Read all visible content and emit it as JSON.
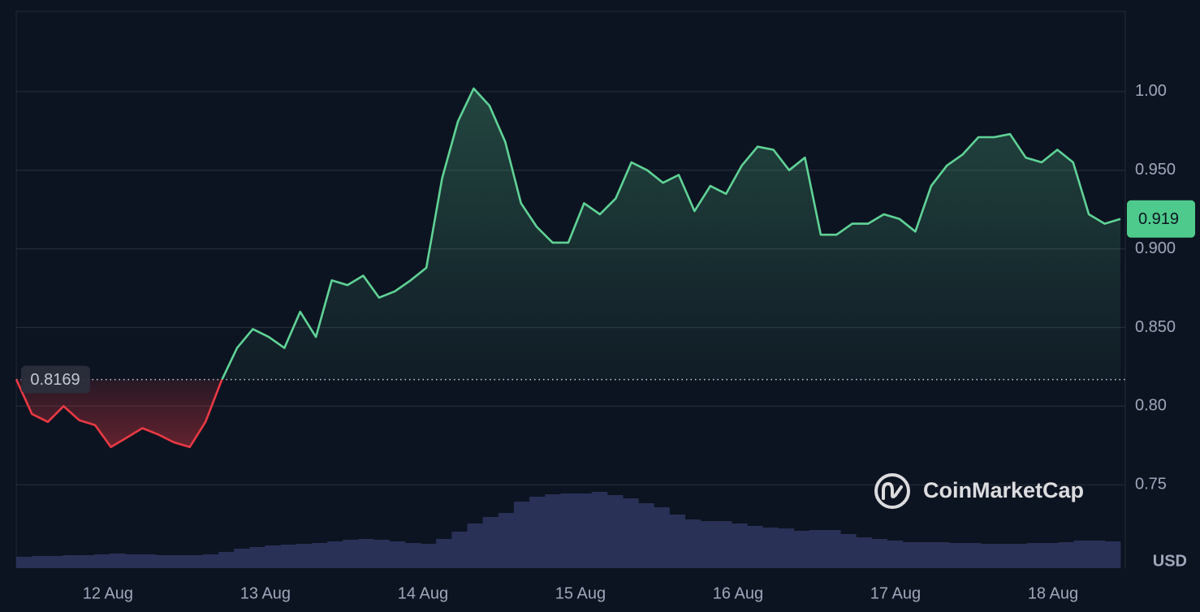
{
  "chart_data": {
    "type": "line",
    "xlim": [
      11.418,
      18.428
    ],
    "xticks": [
      {
        "value": 12,
        "label": "12 Aug"
      },
      {
        "value": 13,
        "label": "13 Aug"
      },
      {
        "value": 14,
        "label": "14 Aug"
      },
      {
        "value": 15,
        "label": "15 Aug"
      },
      {
        "value": 16,
        "label": "16 Aug"
      },
      {
        "value": 17,
        "label": "17 Aug"
      },
      {
        "value": 18,
        "label": "18 Aug"
      }
    ],
    "ylim": [
      0.697,
      1.051
    ],
    "yticks": [
      {
        "value": 0.75,
        "label": "0.75"
      },
      {
        "value": 0.8,
        "label": "0.80"
      },
      {
        "value": 0.85,
        "label": "0.850"
      },
      {
        "value": 0.9,
        "label": "0.900"
      },
      {
        "value": 0.95,
        "label": "0.950"
      },
      {
        "value": 1,
        "label": "1.00"
      }
    ],
    "grid": true,
    "values": [
      0.817,
      0.795,
      0.79,
      0.8,
      0.791,
      0.788,
      0.774,
      0.78,
      0.786,
      0.782,
      0.777,
      0.774,
      0.79,
      0.816,
      0.837,
      0.849,
      0.844,
      0.837,
      0.86,
      0.844,
      0.88,
      0.877,
      0.883,
      0.869,
      0.873,
      0.88,
      0.888,
      0.945,
      0.981,
      1.002,
      0.991,
      0.968,
      0.929,
      0.914,
      0.904,
      0.904,
      0.929,
      0.922,
      0.932,
      0.955,
      0.95,
      0.942,
      0.947,
      0.924,
      0.94,
      0.935,
      0.953,
      0.965,
      0.963,
      0.95,
      0.958,
      0.909,
      0.909,
      0.916,
      0.916,
      0.922,
      0.919,
      0.911,
      0.94,
      0.953,
      0.96,
      0.971,
      0.971,
      0.973,
      0.958,
      0.955,
      0.963,
      0.955,
      0.922,
      0.916,
      0.919
    ],
    "color_up": "#5fd396",
    "color_down": "#ea3943",
    "baseline": 0.8169,
    "last_value": 0.919,
    "volume": {
      "values": [
        14,
        15,
        15,
        16,
        16,
        17,
        18,
        17,
        17,
        16,
        16,
        16,
        17,
        20,
        24,
        26,
        28,
        29,
        30,
        31,
        33,
        35,
        36,
        35,
        33,
        31,
        30,
        36,
        45,
        55,
        63,
        68,
        82,
        88,
        91,
        92,
        92,
        94,
        90,
        86,
        80,
        75,
        66,
        60,
        58,
        58,
        55,
        52,
        50,
        49,
        46,
        47,
        47,
        42,
        38,
        36,
        34,
        32,
        32,
        32,
        31,
        31,
        30,
        30,
        30,
        31,
        31,
        32,
        34,
        34,
        33
      ],
      "ylim": [
        0,
        100
      ],
      "color": "#2a3157"
    },
    "currency": "USD",
    "watermark": "CoinMarketCap"
  }
}
